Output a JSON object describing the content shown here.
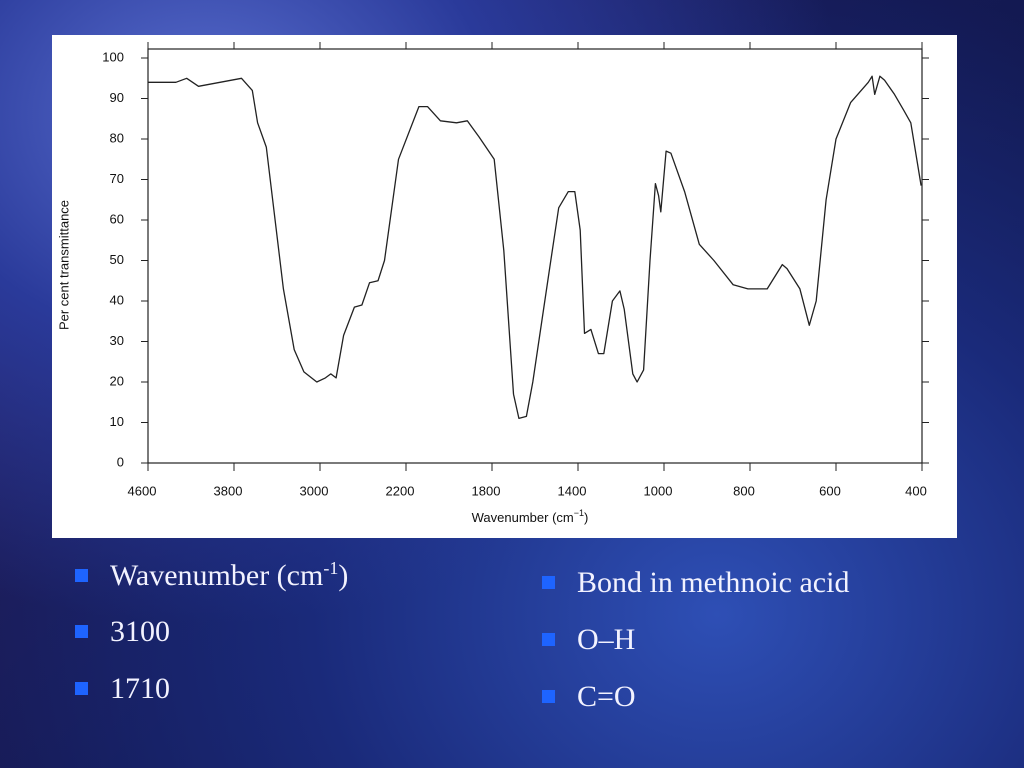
{
  "chart_data": {
    "type": "line",
    "xlabel": {
      "text": "Wavenumber  (cm",
      "sup": "−1",
      "end": ")"
    },
    "ylabel": "Per cent transmittance",
    "x": [
      4600,
      4340,
      4240,
      4130,
      3730,
      3630,
      3580,
      3500,
      3340,
      3240,
      3150,
      3030,
      2950,
      2900,
      2850,
      2780,
      2680,
      2610,
      2540,
      2460,
      2400,
      2270,
      2140,
      2100,
      2040,
      1965,
      1915,
      1860,
      1790,
      1745,
      1700,
      1675,
      1640,
      1610,
      1535,
      1490,
      1445,
      1415,
      1390,
      1370,
      1340,
      1305,
      1280,
      1240,
      1205,
      1185,
      1145,
      1125,
      1095,
      1065,
      1040,
      1025,
      1015,
      995,
      984,
      952,
      918,
      884,
      839,
      805,
      760,
      725,
      714,
      684,
      662,
      646,
      623,
      600,
      566,
      525,
      516,
      510,
      498,
      487,
      464,
      442,
      426,
      402
    ],
    "values": [
      94,
      94,
      95,
      93,
      95,
      92,
      84,
      78,
      43,
      28,
      22.5,
      20,
      21,
      22,
      21,
      31.5,
      38.5,
      39,
      44.5,
      45,
      50,
      75,
      88,
      88,
      84.5,
      84,
      84.5,
      80.5,
      75,
      52.5,
      17,
      11,
      11.5,
      20,
      47,
      63,
      67,
      67,
      57.5,
      32,
      33,
      27,
      27,
      40,
      42.5,
      38,
      22,
      20,
      23,
      50,
      69,
      66,
      62,
      77,
      76.5,
      67,
      54,
      50,
      44,
      43,
      43,
      49,
      48,
      43,
      34,
      40,
      65,
      80,
      89,
      94,
      95.5,
      91,
      95.5,
      94.5,
      91,
      87,
      84,
      68.5
    ],
    "color": "#222222",
    "xlim": [
      4600,
      400
    ],
    "xticks": [
      4600,
      3800,
      3000,
      2200,
      1800,
      1400,
      1000,
      800,
      600,
      400
    ],
    "ylim": [
      0,
      100
    ],
    "yticks": [
      0,
      10,
      20,
      30,
      40,
      50,
      60,
      70,
      80,
      90,
      100
    ]
  },
  "left_bullets": [
    {
      "text": "Wavenumber (cm",
      "sup": "-1",
      "end": ")"
    },
    {
      "text": "3100"
    },
    {
      "text": "1710"
    }
  ],
  "right_bullets": [
    {
      "text": "Bond in methnoic acid"
    },
    {
      "text": "O–H"
    },
    {
      "text": "C=O"
    }
  ]
}
